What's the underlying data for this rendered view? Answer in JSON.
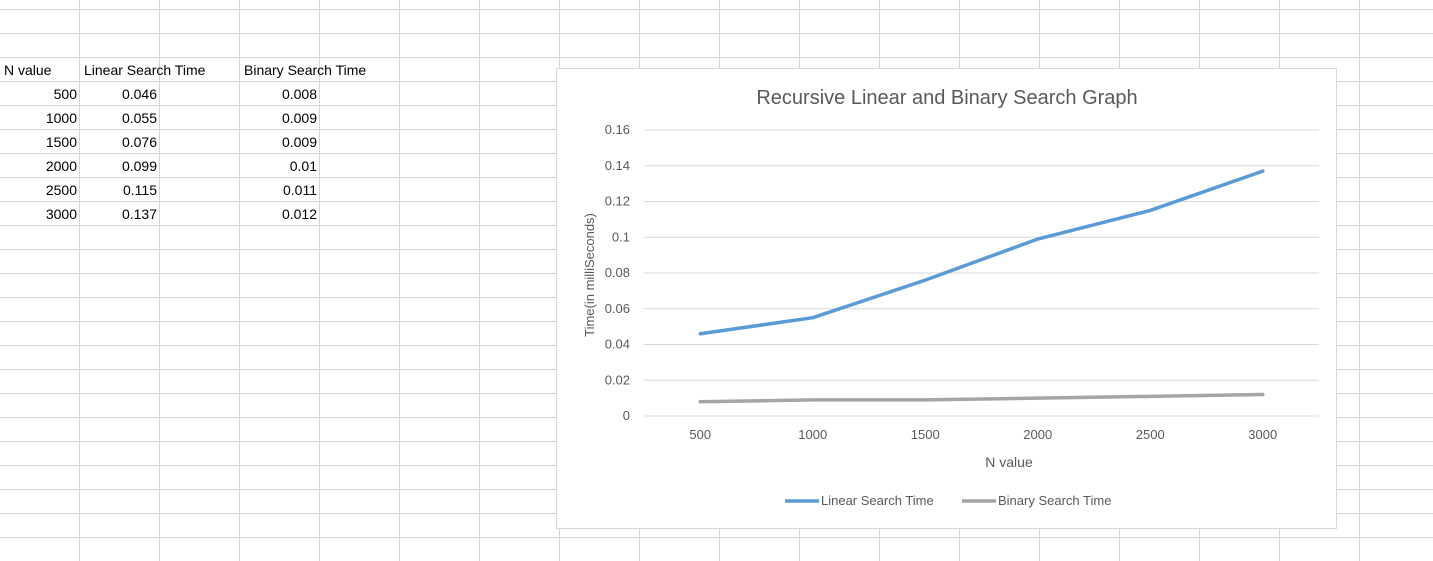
{
  "sheet": {
    "headers": [
      "N value",
      "Linear Search Time",
      "Binary Search Time"
    ],
    "rows": [
      [
        "500",
        "0.046",
        "0.008"
      ],
      [
        "1000",
        "0.055",
        "0.009"
      ],
      [
        "1500",
        "0.076",
        "0.009"
      ],
      [
        "2000",
        "0.099",
        "0.01"
      ],
      [
        "2500",
        "0.115",
        "0.011"
      ],
      [
        "3000",
        "0.137",
        "0.012"
      ]
    ]
  },
  "chart_data": {
    "type": "line",
    "title": "Recursive Linear and Binary Search Graph",
    "xlabel": "N value",
    "ylabel": "Time(in milliSeconds)",
    "categories": [
      "500",
      "1000",
      "1500",
      "2000",
      "2500",
      "3000"
    ],
    "ylim": [
      0,
      0.16
    ],
    "yticks": [
      "0",
      "0.02",
      "0.04",
      "0.06",
      "0.08",
      "0.1",
      "0.12",
      "0.14",
      "0.16"
    ],
    "grid": true,
    "legend_position": "bottom",
    "series": [
      {
        "name": "Linear Search Time",
        "color": "#5b9bd5",
        "values": [
          0.046,
          0.055,
          0.076,
          0.099,
          0.115,
          0.137
        ]
      },
      {
        "name": "Binary Search Time",
        "color": "#a5a5a5",
        "values": [
          0.008,
          0.009,
          0.009,
          0.01,
          0.011,
          0.012
        ]
      }
    ]
  }
}
